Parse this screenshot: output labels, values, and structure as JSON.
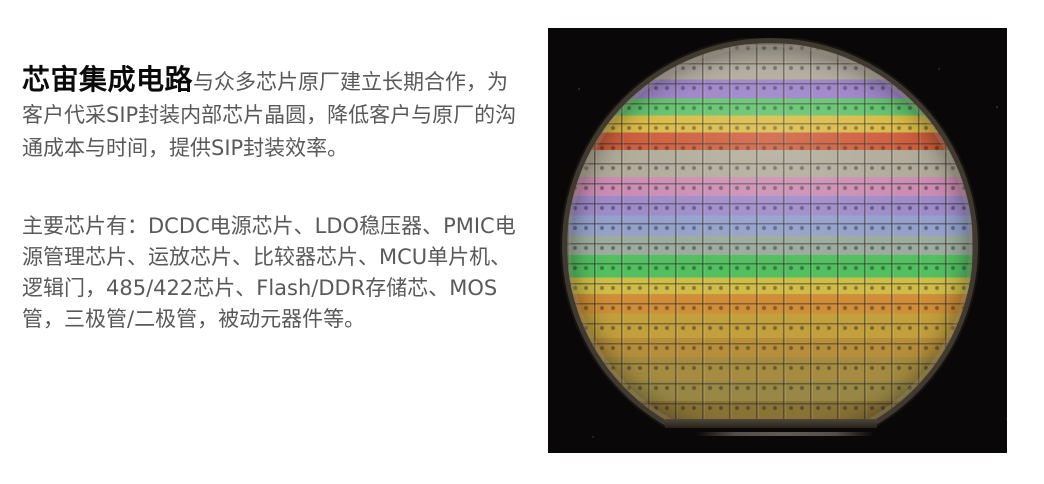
{
  "intro": {
    "brand": "芯宙集成电路",
    "text": "与众多芯片原厂建立长期合作，为客户代采SIP封装内部芯片晶圆，降低客户与原厂的沟通成本与时间，提供SIP封装效率。"
  },
  "chips": {
    "text": "主要芯片有：DCDC电源芯片、LDO稳压器、PMIC电源管理芯片、运放芯片、比较器芯片、MCU单片机、逻辑门，485/422芯片、Flash/DDR存储芯、MOS管，三极管/二极管，被动元器件等。"
  },
  "colors": {
    "heading_text": "#0a0a0a",
    "body_text": "#595959",
    "page_background": "#ffffff",
    "photo_background": "#0a0708",
    "wafer_rim": "#3f3930"
  },
  "wafer": {
    "bands": [
      {
        "to": 4.5,
        "color": "#a9a295"
      },
      {
        "to": 9.0,
        "color": "#b2aa9c"
      },
      {
        "to": 13.7,
        "color": "#9c82c8"
      },
      {
        "to": 17.8,
        "color": "#5fc36a"
      },
      {
        "to": 22.1,
        "color": "#d9ba42"
      },
      {
        "to": 26.4,
        "color": "#cc5c3a"
      },
      {
        "to": 33.0,
        "color": "#b1aa99"
      },
      {
        "to": 37.7,
        "color": "#cb8db2"
      },
      {
        "to": 42.5,
        "color": "#9e8bca"
      },
      {
        "to": 47.4,
        "color": "#95a1cb"
      },
      {
        "to": 52.2,
        "color": "#9dac9e"
      },
      {
        "to": 57.7,
        "color": "#52bf60"
      },
      {
        "to": 61.8,
        "color": "#cfbd48"
      },
      {
        "to": 66.6,
        "color": "#cf8e37"
      },
      {
        "to": 72.6,
        "color": "#c3a03e"
      },
      {
        "to": 77.4,
        "color": "#b78f3b"
      },
      {
        "to": 83.4,
        "color": "#a58c41"
      },
      {
        "to": 88.2,
        "color": "#998845"
      },
      {
        "to": 94.0,
        "color": "#8a7336"
      },
      {
        "to": 100,
        "color": "#6e5b2d"
      }
    ]
  }
}
